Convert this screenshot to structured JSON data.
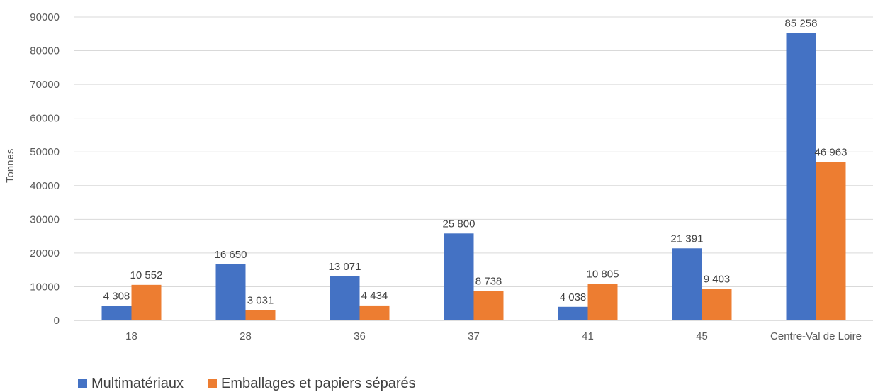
{
  "chart_data": {
    "type": "bar",
    "title": "",
    "xlabel": "",
    "ylabel": "Tonnes",
    "ylim": [
      0,
      90000
    ],
    "yticks": [
      "0",
      "10000",
      "20000",
      "30000",
      "40000",
      "50000",
      "60000",
      "70000",
      "80000",
      "90000"
    ],
    "grid": true,
    "legend_position": "bottom-left",
    "categories": [
      "18",
      "28",
      "36",
      "37",
      "41",
      "45",
      "Centre-Val de Loire"
    ],
    "series": [
      {
        "name": "Multimatériaux",
        "color": "#4472C4",
        "values": [
          4308,
          16650,
          13071,
          25800,
          4038,
          21391,
          85258
        ],
        "labels": [
          "4 308",
          "16 650",
          "13 071",
          "25 800",
          "4 038",
          "21 391",
          "85 258"
        ]
      },
      {
        "name": "Emballages et papiers séparés",
        "color": "#ED7D31",
        "values": [
          10552,
          3031,
          4434,
          8738,
          10805,
          9403,
          46963
        ],
        "labels": [
          "10 552",
          "3 031",
          "4 434",
          "8 738",
          "10 805",
          "9 403",
          "46 963"
        ]
      }
    ]
  }
}
